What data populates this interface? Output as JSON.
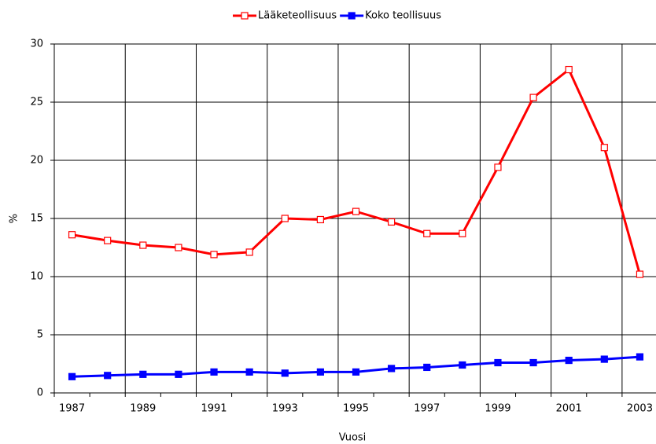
{
  "chart_data": {
    "type": "line",
    "xlabel": "Vuosi",
    "ylabel": "%",
    "categories": [
      "1987",
      null,
      "1989",
      null,
      "1991",
      null,
      "1993",
      null,
      "1995",
      null,
      "1997",
      null,
      "1999",
      null,
      "2001",
      null,
      "2003"
    ],
    "series": [
      {
        "name": "Lääketeollisuus",
        "color": "#ff0000",
        "marker": "hollow-square",
        "values": [
          13.6,
          13.1,
          12.7,
          12.5,
          11.9,
          12.1,
          15.0,
          14.9,
          15.6,
          14.7,
          13.7,
          13.7,
          19.4,
          25.4,
          27.8,
          21.1,
          10.2
        ]
      },
      {
        "name": "Koko teollisuus",
        "color": "#0000ff",
        "marker": "filled-square",
        "values": [
          1.4,
          1.5,
          1.6,
          1.6,
          1.8,
          1.8,
          1.7,
          1.8,
          1.8,
          2.1,
          2.2,
          2.4,
          2.6,
          2.6,
          2.8,
          2.9,
          3.1
        ]
      }
    ],
    "ylim": [
      0,
      30
    ],
    "yticks": [
      0,
      5,
      10,
      15,
      20,
      25,
      30
    ],
    "grid": true,
    "legend": "top"
  }
}
